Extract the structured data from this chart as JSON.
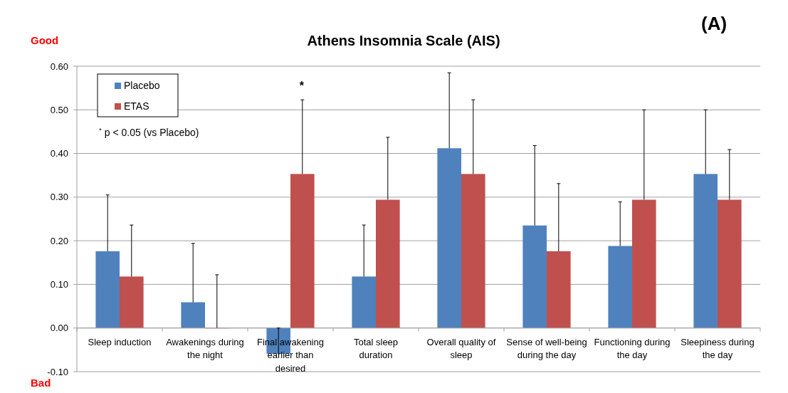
{
  "chart_data": {
    "type": "bar",
    "title": "Athens Insomnia Scale (AIS)",
    "categories": [
      "Sleep induction",
      "Awakenings during the night",
      "Final awakening earlier than desired",
      "Total sleep duration",
      "Overall quality of sleep",
      "Sense of well-being during the day",
      "Functioning during the day",
      "Sleepiness during the day"
    ],
    "series": [
      {
        "name": "Placebo",
        "color": "#4f81bd",
        "values": [
          0.176,
          0.059,
          -0.059,
          0.118,
          0.412,
          0.235,
          0.188,
          0.353
        ],
        "errors": [
          [
            0.176,
            0.305
          ],
          [
            0.059,
            0.194
          ],
          [
            -0.059,
            0.0
          ],
          [
            0.118,
            0.236
          ],
          [
            0.412,
            0.585
          ],
          [
            0.235,
            0.418
          ],
          [
            0.188,
            0.289
          ],
          [
            0.353,
            0.5
          ]
        ]
      },
      {
        "name": "ETAS",
        "color": "#c0504d",
        "values": [
          0.118,
          0,
          0.353,
          0.294,
          0.353,
          0.176,
          0.294,
          0.294
        ],
        "errors": [
          [
            0.118,
            0.236
          ],
          [
            0,
            0.122
          ],
          [
            0.353,
            0.523
          ],
          [
            0.294,
            0.437
          ],
          [
            0.353,
            0.523
          ],
          [
            0.176,
            0.331
          ],
          [
            0.294,
            0.5
          ],
          [
            0.294,
            0.409
          ]
        ]
      }
    ],
    "ylim": [
      -0.1,
      0.6
    ],
    "yticks": [
      {
        "value": -0.1,
        "label": "-0.10"
      },
      {
        "value": 0,
        "label": "0.00"
      },
      {
        "value": 0.1,
        "label": "0.10"
      },
      {
        "value": 0.2,
        "label": "0.20"
      },
      {
        "value": 0.3,
        "label": "0.30"
      },
      {
        "value": 0.4,
        "label": "0.40"
      },
      {
        "value": 0.5,
        "label": "0.50"
      },
      {
        "value": 0.6,
        "label": "0.60"
      }
    ],
    "grid": "y",
    "legend": "top left",
    "annotations": [
      "*",
      "$^{*}$ p < 0.05 (vs Placebo)",
      "Good",
      "Bad",
      "(A)"
    ]
  }
}
